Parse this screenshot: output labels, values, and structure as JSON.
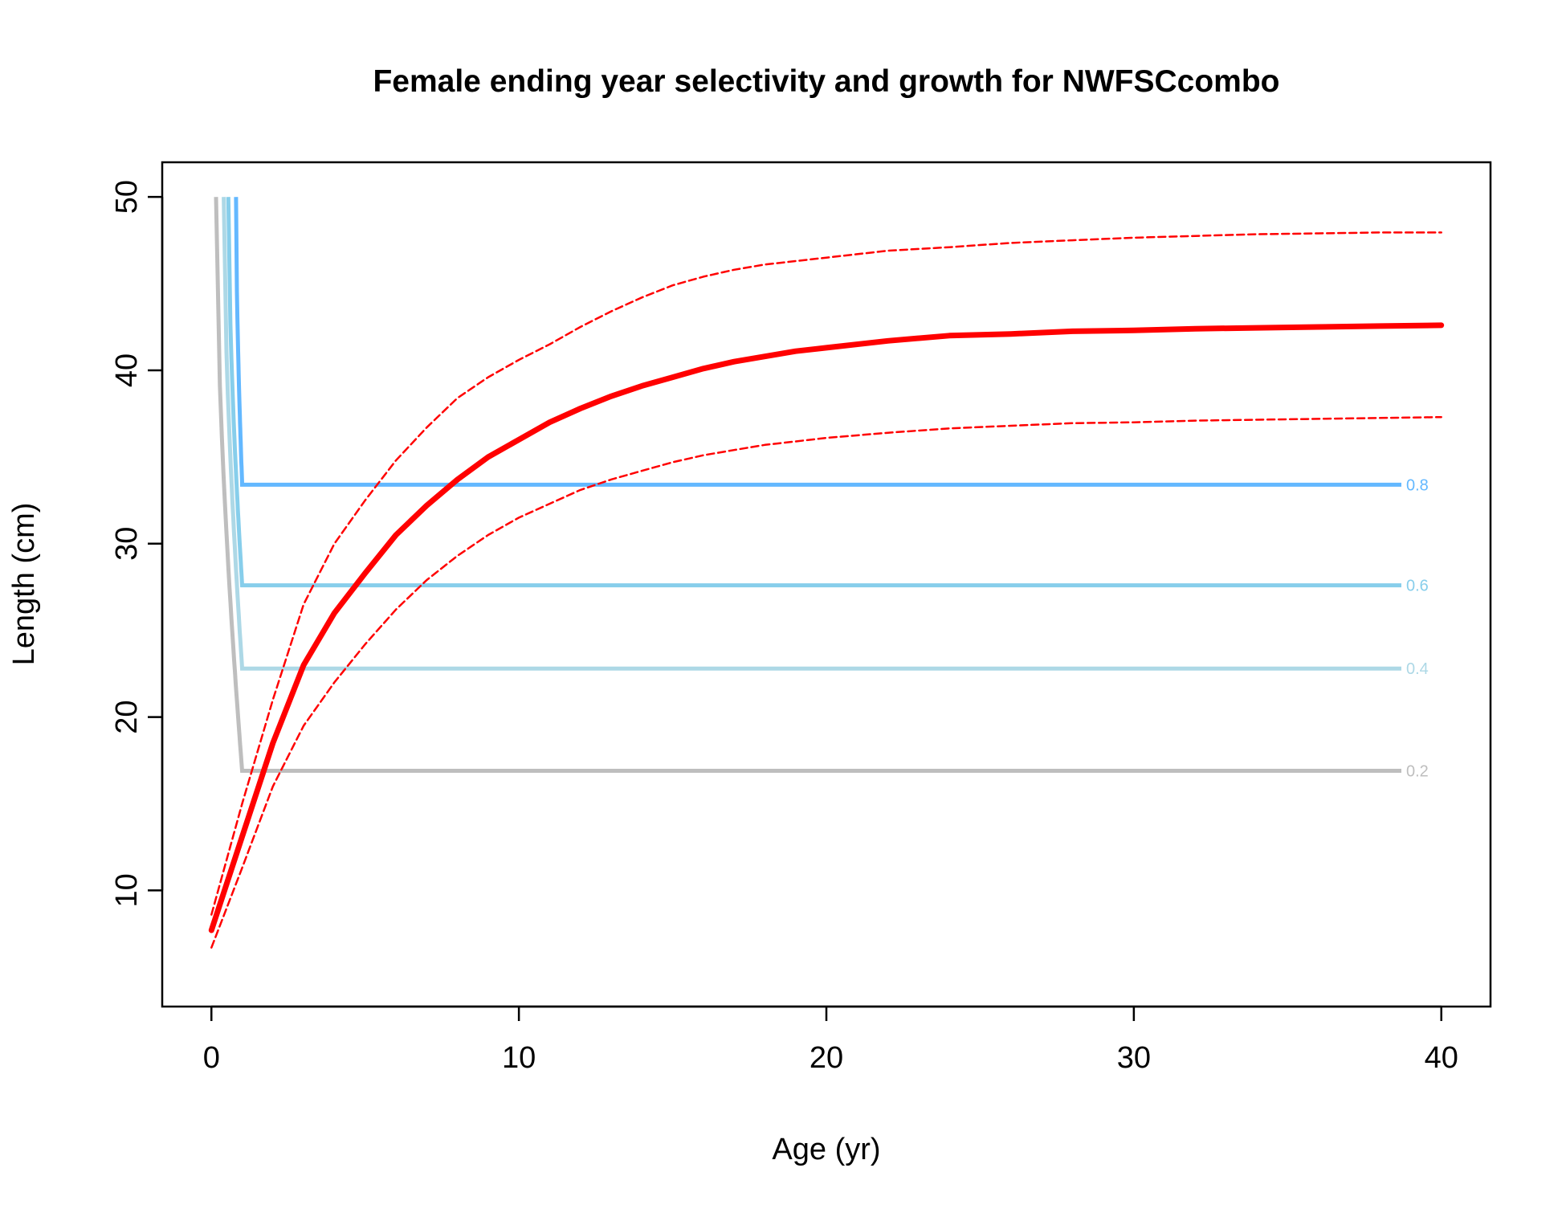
{
  "chart_data": {
    "type": "line",
    "title": "Female ending year selectivity and growth for NWFSCcombo",
    "xlabel": "Age (yr)",
    "ylabel": "Length (cm)",
    "xlim": [
      -1.6,
      41.6
    ],
    "ylim": [
      3.3,
      52.0
    ],
    "xticks": [
      "0",
      "10",
      "20",
      "30",
      "40"
    ],
    "yticks": [
      "10",
      "20",
      "30",
      "40",
      "50"
    ],
    "grid": false,
    "legend": "none",
    "colors": {
      "growth": "#ff0000",
      "level_0.2": "#bebebe",
      "level_0.4": "#add8e6",
      "level_0.6": "#87ceeb",
      "level_0.8": "#63b8ff"
    },
    "growth_mean": {
      "x": [
        0,
        1,
        2,
        3,
        4,
        5,
        6,
        7,
        8,
        9,
        10,
        11,
        12,
        13,
        14,
        15,
        16,
        17,
        18,
        19,
        20,
        22,
        24,
        26,
        28,
        30,
        32,
        34,
        36,
        38,
        40
      ],
      "y": [
        7.7,
        13.1,
        18.5,
        23.0,
        26.0,
        28.3,
        30.5,
        32.2,
        33.7,
        35.0,
        36.0,
        37.0,
        37.8,
        38.5,
        39.1,
        39.6,
        40.1,
        40.5,
        40.8,
        41.1,
        41.3,
        41.7,
        42.0,
        42.1,
        42.25,
        42.3,
        42.4,
        42.45,
        42.5,
        42.55,
        42.6
      ]
    },
    "growth_upper": {
      "x": [
        0,
        1,
        2,
        3,
        4,
        5,
        6,
        7,
        8,
        9,
        10,
        11,
        12,
        13,
        14,
        15,
        16,
        17,
        18,
        19,
        20,
        22,
        24,
        26,
        28,
        30,
        32,
        34,
        36,
        38,
        40
      ],
      "y": [
        8.6,
        15.0,
        21.0,
        26.5,
        30.0,
        32.5,
        34.8,
        36.7,
        38.4,
        39.6,
        40.6,
        41.5,
        42.5,
        43.4,
        44.2,
        44.9,
        45.4,
        45.8,
        46.1,
        46.3,
        46.5,
        46.9,
        47.1,
        47.35,
        47.5,
        47.65,
        47.75,
        47.85,
        47.9,
        47.95,
        47.95
      ]
    },
    "growth_lower": {
      "x": [
        0,
        1,
        2,
        3,
        4,
        5,
        6,
        7,
        8,
        9,
        10,
        11,
        12,
        13,
        14,
        15,
        16,
        17,
        18,
        19,
        20,
        22,
        24,
        26,
        28,
        30,
        32,
        34,
        36,
        38,
        40
      ],
      "y": [
        6.7,
        11.3,
        16.0,
        19.5,
        22.0,
        24.2,
        26.2,
        27.9,
        29.3,
        30.5,
        31.5,
        32.3,
        33.1,
        33.7,
        34.2,
        34.7,
        35.1,
        35.4,
        35.7,
        35.9,
        36.1,
        36.4,
        36.65,
        36.8,
        36.95,
        37.0,
        37.1,
        37.15,
        37.2,
        37.25,
        37.3
      ]
    },
    "contours": [
      {
        "name": "0.2",
        "color": "#bebebe",
        "x_start": 0.15,
        "x_corner": 1.0,
        "x_end": 38.7,
        "level_y": 16.9
      },
      {
        "name": "0.4",
        "color": "#add8e6",
        "x_start": 0.4,
        "x_corner": 1.0,
        "x_end": 38.7,
        "level_y": 22.8
      },
      {
        "name": "0.6",
        "color": "#87ceeb",
        "x_start": 0.55,
        "x_corner": 1.0,
        "x_end": 38.7,
        "level_y": 27.6
      },
      {
        "name": "0.8",
        "color": "#63b8ff",
        "x_start": 0.8,
        "x_corner": 1.0,
        "x_end": 38.7,
        "level_y": 33.4
      }
    ],
    "contour_top_y": 50
  }
}
